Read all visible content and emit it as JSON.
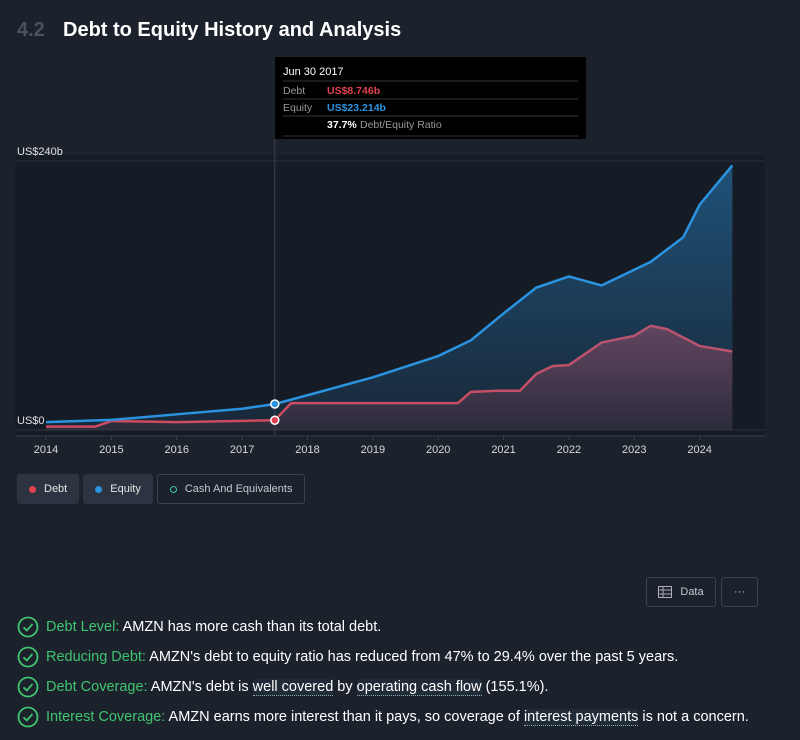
{
  "section": {
    "number": "4.2"
  },
  "chart_data": {
    "type": "area",
    "title": "Debt to Equity History and Analysis",
    "x_type": "year",
    "xlim": [
      2013.9,
      2025
    ],
    "xticks": [
      2014,
      2015,
      2016,
      2017,
      2018,
      2019,
      2020,
      2021,
      2022,
      2023,
      2024
    ],
    "ylim": [
      0,
      240
    ],
    "yticks": [
      {
        "value": 0,
        "label": "US$0"
      },
      {
        "value": 240,
        "label": "US$240b"
      }
    ],
    "series": [
      {
        "name": "Debt",
        "color": "#e0424f",
        "x": [
          2014,
          2014.75,
          2015,
          2016,
          2017.5,
          2017.75,
          2019,
          2020,
          2020.3,
          2020.5,
          2020.9,
          2021.25,
          2021.5,
          2021.75,
          2022,
          2022.5,
          2023,
          2023.25,
          2023.5,
          2024,
          2024.5
        ],
        "values": [
          3,
          3,
          8,
          7,
          8.7,
          24,
          24,
          24,
          24,
          34,
          35,
          35,
          50,
          57,
          58,
          78,
          84,
          93,
          90,
          75,
          70
        ]
      },
      {
        "name": "Equity",
        "color": "#2b93df",
        "x": [
          2014,
          2015,
          2016,
          2017,
          2017.5,
          2018,
          2019,
          2020,
          2020.5,
          2021,
          2021.5,
          2021.75,
          2022,
          2022.5,
          2023,
          2023.25,
          2023.75,
          2024,
          2024.5
        ],
        "values": [
          7,
          9,
          14,
          19,
          23.2,
          31,
          47,
          66,
          80,
          104,
          127,
          132,
          137,
          129,
          143,
          150,
          172,
          201,
          236
        ]
      },
      {
        "name": "Cash And Equivalents",
        "color": "#3fc4b8",
        "x": [],
        "values": []
      }
    ],
    "hover": {
      "x": 2017.5,
      "date": "Jun 30 2017",
      "rows": [
        {
          "name": "Debt",
          "value": "US$8.746b"
        },
        {
          "name": "Equity",
          "value": "US$23.214b"
        }
      ],
      "ratio": "37.7%",
      "ratio_label": "Debt/Equity Ratio"
    }
  },
  "buttons": {
    "data": "Data",
    "more": "···"
  },
  "checks": [
    {
      "label": "Debt Level:",
      "parts": [
        " AMZN has more cash than its total debt."
      ]
    },
    {
      "label": "Reducing Debt:",
      "parts": [
        " AMZN's debt to equity ratio has reduced from 47% to 29.4% over the past 5 years."
      ]
    },
    {
      "label": "Debt Coverage:",
      "parts": [
        " AMZN's debt is ",
        "well covered",
        " by ",
        "operating cash flow",
        " (155.1%)."
      ]
    },
    {
      "label": "Interest Coverage:",
      "parts": [
        " AMZN earns more interest than it pays, so coverage of ",
        "interest payments",
        " is not a concern."
      ]
    }
  ]
}
